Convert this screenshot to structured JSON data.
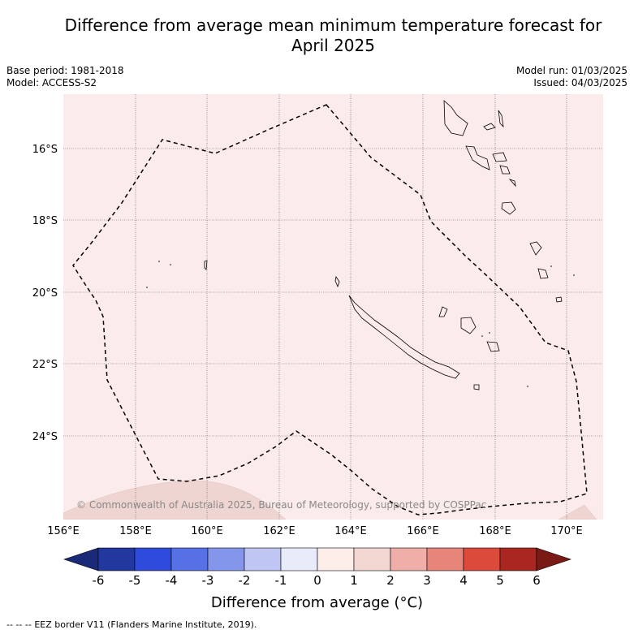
{
  "header": {
    "title_line1": "Difference from average mean minimum temperature forecast for",
    "title_line2": "April 2025",
    "base_period": "Base period: 1981-2018",
    "model": "Model: ACCESS-S2",
    "model_run": "Model run: 01/03/2025",
    "issued": "Issued: 04/03/2025"
  },
  "map": {
    "lat_labels": [
      "16°S",
      "18°S",
      "20°S",
      "22°S",
      "24°S"
    ],
    "lon_labels": [
      "156°E",
      "158°E",
      "160°E",
      "162°E",
      "164°E",
      "166°E",
      "168°E",
      "170°E"
    ],
    "copyright": "© Commonwealth of Australia 2025, Bureau of Meteorology, supported by COSPPac",
    "background_color": "#fbebea",
    "anomaly_patch_color": "#efd5d1",
    "eez_style": "dashed"
  },
  "colorbar": {
    "ticks": [
      "-6",
      "-5",
      "-4",
      "-3",
      "-2",
      "-1",
      "0",
      "1",
      "2",
      "3",
      "4",
      "5",
      "6"
    ],
    "colors": [
      "#23389e",
      "#2f4bde",
      "#5670e6",
      "#8396ec",
      "#bfc6f3",
      "#e8ebfa",
      "#fdeeea",
      "#f1d6d2",
      "#efaea8",
      "#e8857a",
      "#dc4a3c",
      "#a92720"
    ],
    "low_extend_color": "#1b2a78",
    "high_extend_color": "#7a1a15",
    "label": "Difference from average (°C)"
  },
  "footer": {
    "legend_symbol": "-- -- --",
    "legend_text": "EEZ border V11 (Flanders Marine Institute, 2019)."
  }
}
